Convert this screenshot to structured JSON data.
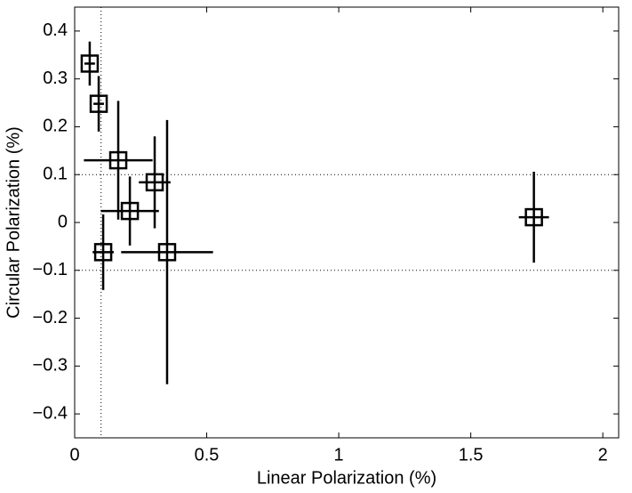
{
  "chart_data": {
    "type": "scatter",
    "x_label": "Linear Polarization (%)",
    "y_label": "Circular Polarization (%)",
    "xlim": [
      0,
      2.06
    ],
    "ylim": [
      -0.45,
      0.45
    ],
    "xticks": [
      0,
      0.5,
      1,
      1.5,
      2
    ],
    "yticks": [
      {
        "value": -0.4,
        "label": "−0.4"
      },
      {
        "value": -0.3,
        "label": "−0.3"
      },
      {
        "value": -0.2,
        "label": "−0.2"
      },
      {
        "value": -0.1,
        "label": "−0.1"
      },
      0,
      0.1,
      0.2,
      0.3,
      0.4
    ],
    "ref_lines": {
      "x": [
        0.1
      ],
      "y": [
        0.1,
        -0.1
      ]
    },
    "series": [
      {
        "color": "#000000",
        "x": [
          0.057,
          0.091,
          0.165,
          0.303,
          0.209,
          0.108,
          0.35,
          1.739
        ],
        "values": [
          0.332,
          0.248,
          0.13,
          0.084,
          0.024,
          -0.062,
          -0.062,
          0.011
        ],
        "xerr": [
          0.02,
          0.02,
          0.13,
          0.06,
          0.11,
          0.04,
          0.174,
          0.057
        ],
        "yerr": [
          0.046,
          0.058,
          0.124,
          0.096,
          0.072,
          0.079,
          0.276,
          0.095
        ]
      }
    ]
  }
}
